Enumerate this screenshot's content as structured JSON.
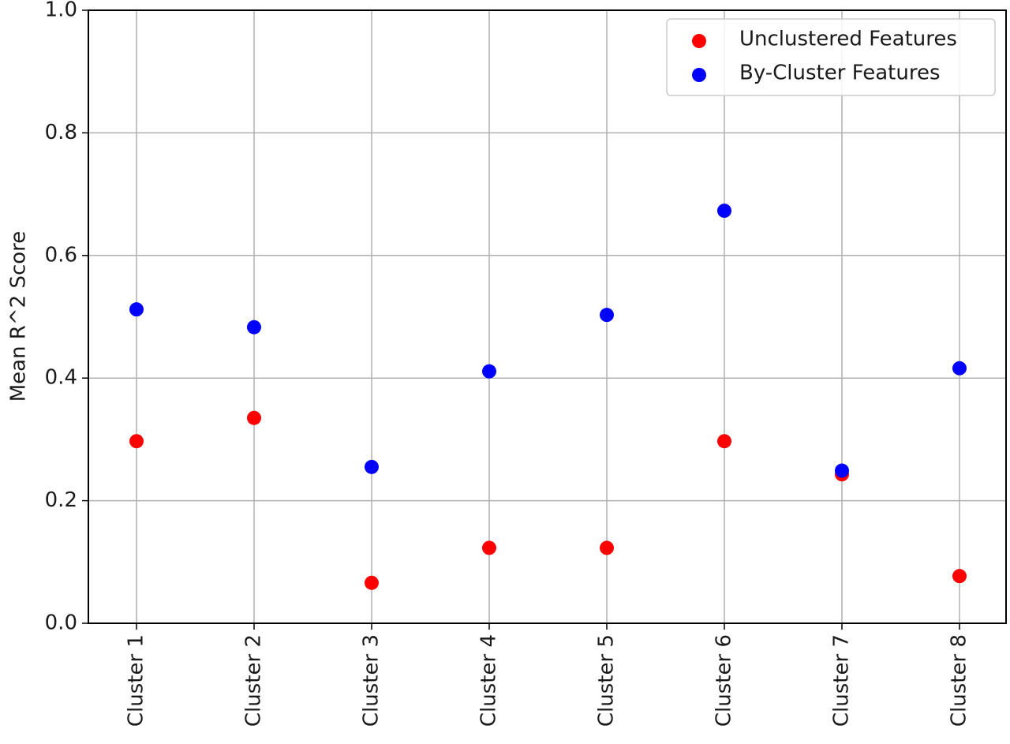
{
  "chart_data": {
    "type": "scatter",
    "title": "",
    "xlabel": "",
    "ylabel": "Mean R^2 Score",
    "categories": [
      "Cluster 1",
      "Cluster 2",
      "Cluster 3",
      "Cluster 4",
      "Cluster 5",
      "Cluster 6",
      "Cluster 7",
      "Cluster 8"
    ],
    "ylim": [
      0.0,
      1.0
    ],
    "yticks": [
      "0.0",
      "0.2",
      "0.4",
      "0.6",
      "0.8",
      "1.0"
    ],
    "grid": true,
    "legend_position": "top-right",
    "series": [
      {
        "name": "Unclustered Features",
        "color": "#ff0000",
        "values": [
          0.297,
          0.335,
          0.066,
          0.123,
          0.123,
          0.297,
          0.243,
          0.077
        ]
      },
      {
        "name": "By-Cluster Features",
        "color": "#0000ff",
        "values": [
          0.512,
          0.483,
          0.255,
          0.411,
          0.503,
          0.673,
          0.249,
          0.416
        ]
      }
    ]
  }
}
